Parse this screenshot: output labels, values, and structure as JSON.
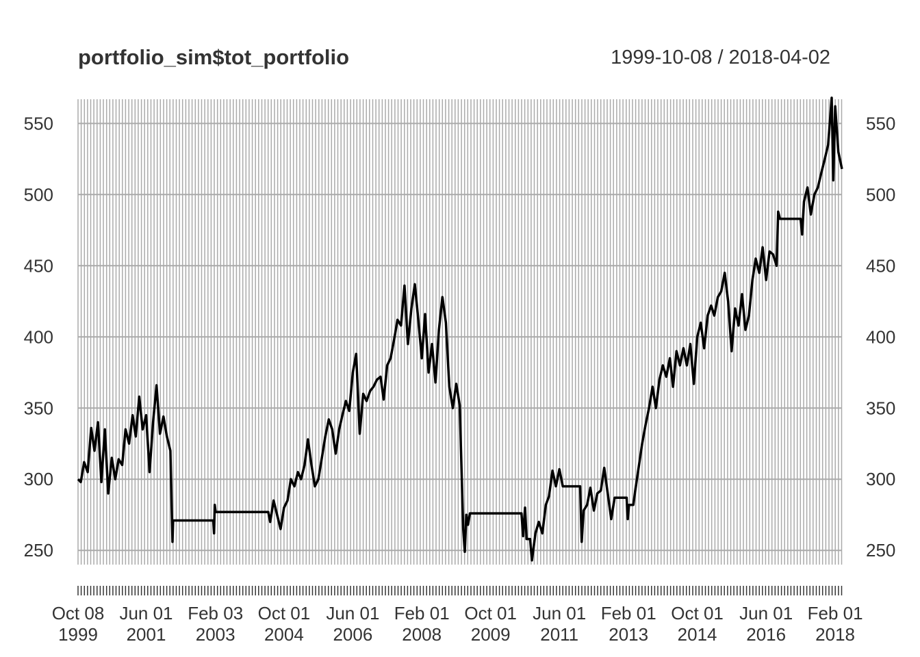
{
  "title": "portfolio_sim$tot_portfolio",
  "date_range": "1999-10-08 / 2018-04-02",
  "colors": {
    "line": "#000000",
    "grid": "#aaaaaa",
    "text": "#333333"
  },
  "chart_data": {
    "type": "line",
    "title": "portfolio_sim$tot_portfolio",
    "subtitle": "1999-10-08 / 2018-04-02",
    "xlabel": "",
    "ylabel": "",
    "ylim": [
      240,
      567
    ],
    "grid": true,
    "y_ticks": [
      250,
      300,
      350,
      400,
      450,
      500,
      550
    ],
    "x_ticks": [
      {
        "date": "1999-10-08",
        "line1": "Oct 08",
        "line2": "1999"
      },
      {
        "date": "2001-06-01",
        "line1": "Jun 01",
        "line2": "2001"
      },
      {
        "date": "2003-02-03",
        "line1": "Feb 03",
        "line2": "2003"
      },
      {
        "date": "2004-10-01",
        "line1": "Oct 01",
        "line2": "2004"
      },
      {
        "date": "2006-06-01",
        "line1": "Jun 01",
        "line2": "2006"
      },
      {
        "date": "2008-02-01",
        "line1": "Feb 01",
        "line2": "2008"
      },
      {
        "date": "2009-10-01",
        "line1": "Oct 01",
        "line2": "2009"
      },
      {
        "date": "2011-06-01",
        "line1": "Jun 01",
        "line2": "2011"
      },
      {
        "date": "2013-02-01",
        "line1": "Feb 01",
        "line2": "2013"
      },
      {
        "date": "2014-10-01",
        "line1": "Oct 01",
        "line2": "2014"
      },
      {
        "date": "2016-06-01",
        "line1": "Jun 01",
        "line2": "2016"
      },
      {
        "date": "2018-02-01",
        "line1": "Feb 01",
        "line2": "2018"
      }
    ],
    "series": [
      {
        "points": [
          [
            "1999-10-08",
            300
          ],
          [
            "1999-11-01",
            298
          ],
          [
            "1999-12-01",
            312
          ],
          [
            "2000-01-01",
            305
          ],
          [
            "2000-02-01",
            336
          ],
          [
            "2000-03-01",
            320
          ],
          [
            "2000-04-01",
            340
          ],
          [
            "2000-05-01",
            298
          ],
          [
            "2000-06-01",
            335
          ],
          [
            "2000-07-01",
            290
          ],
          [
            "2000-08-01",
            315
          ],
          [
            "2000-09-01",
            300
          ],
          [
            "2000-10-01",
            314
          ],
          [
            "2000-11-01",
            310
          ],
          [
            "2000-12-01",
            335
          ],
          [
            "2001-01-01",
            325
          ],
          [
            "2001-02-01",
            345
          ],
          [
            "2001-03-01",
            330
          ],
          [
            "2001-04-01",
            358
          ],
          [
            "2001-05-01",
            335
          ],
          [
            "2001-06-01",
            345
          ],
          [
            "2001-07-01",
            305
          ],
          [
            "2001-08-01",
            340
          ],
          [
            "2001-09-01",
            366
          ],
          [
            "2001-10-01",
            332
          ],
          [
            "2001-11-01",
            344
          ],
          [
            "2001-12-01",
            330
          ],
          [
            "2002-01-01",
            320
          ],
          [
            "2002-01-20",
            256
          ],
          [
            "2002-01-25",
            271
          ],
          [
            "2003-01-15",
            271
          ],
          [
            "2003-01-22",
            262
          ],
          [
            "2003-01-28",
            282
          ],
          [
            "2003-02-05",
            277
          ],
          [
            "2004-05-15",
            277
          ],
          [
            "2004-06-01",
            270
          ],
          [
            "2004-07-01",
            285
          ],
          [
            "2004-08-01",
            275
          ],
          [
            "2004-09-01",
            265
          ],
          [
            "2004-10-01",
            280
          ],
          [
            "2004-11-01",
            285
          ],
          [
            "2004-12-01",
            300
          ],
          [
            "2005-01-01",
            295
          ],
          [
            "2005-02-01",
            305
          ],
          [
            "2005-03-01",
            300
          ],
          [
            "2005-04-01",
            310
          ],
          [
            "2005-05-01",
            328
          ],
          [
            "2005-06-01",
            310
          ],
          [
            "2005-07-01",
            295
          ],
          [
            "2005-08-01",
            300
          ],
          [
            "2005-09-01",
            315
          ],
          [
            "2005-10-01",
            330
          ],
          [
            "2005-11-01",
            342
          ],
          [
            "2005-12-01",
            335
          ],
          [
            "2006-01-01",
            318
          ],
          [
            "2006-02-01",
            335
          ],
          [
            "2006-03-01",
            345
          ],
          [
            "2006-04-01",
            355
          ],
          [
            "2006-05-01",
            348
          ],
          [
            "2006-06-01",
            375
          ],
          [
            "2006-07-01",
            388
          ],
          [
            "2006-08-01",
            332
          ],
          [
            "2006-09-01",
            360
          ],
          [
            "2006-10-01",
            355
          ],
          [
            "2006-11-01",
            362
          ],
          [
            "2006-12-01",
            365
          ],
          [
            "2007-01-01",
            370
          ],
          [
            "2007-02-01",
            372
          ],
          [
            "2007-03-01",
            356
          ],
          [
            "2007-04-01",
            380
          ],
          [
            "2007-05-01",
            385
          ],
          [
            "2007-06-01",
            398
          ],
          [
            "2007-07-01",
            412
          ],
          [
            "2007-08-01",
            408
          ],
          [
            "2007-09-01",
            436
          ],
          [
            "2007-10-01",
            395
          ],
          [
            "2007-11-01",
            420
          ],
          [
            "2007-12-01",
            437
          ],
          [
            "2008-01-01",
            412
          ],
          [
            "2008-02-01",
            385
          ],
          [
            "2008-03-01",
            416
          ],
          [
            "2008-04-01",
            375
          ],
          [
            "2008-05-01",
            395
          ],
          [
            "2008-06-01",
            368
          ],
          [
            "2008-07-01",
            405
          ],
          [
            "2008-08-01",
            428
          ],
          [
            "2008-09-01",
            410
          ],
          [
            "2008-10-01",
            365
          ],
          [
            "2008-11-01",
            350
          ],
          [
            "2008-12-01",
            367
          ],
          [
            "2009-01-01",
            352
          ],
          [
            "2009-02-01",
            265
          ],
          [
            "2009-02-15",
            249
          ],
          [
            "2009-03-01",
            275
          ],
          [
            "2009-03-15",
            268
          ],
          [
            "2009-04-01",
            276
          ],
          [
            "2010-07-01",
            276
          ],
          [
            "2010-07-15",
            260
          ],
          [
            "2010-08-01",
            280
          ],
          [
            "2010-08-15",
            258
          ],
          [
            "2010-09-15",
            258
          ],
          [
            "2010-10-01",
            243
          ],
          [
            "2010-11-01",
            262
          ],
          [
            "2010-12-01",
            270
          ],
          [
            "2011-01-01",
            262
          ],
          [
            "2011-02-01",
            282
          ],
          [
            "2011-03-01",
            288
          ],
          [
            "2011-04-01",
            306
          ],
          [
            "2011-05-01",
            295
          ],
          [
            "2011-06-01",
            307
          ],
          [
            "2011-07-01",
            295
          ],
          [
            "2011-12-01",
            295
          ],
          [
            "2011-12-15",
            256
          ],
          [
            "2012-01-01",
            278
          ],
          [
            "2012-02-01",
            282
          ],
          [
            "2012-03-01",
            294
          ],
          [
            "2012-04-01",
            278
          ],
          [
            "2012-05-01",
            290
          ],
          [
            "2012-06-01",
            292
          ],
          [
            "2012-07-01",
            308
          ],
          [
            "2012-08-01",
            290
          ],
          [
            "2012-09-01",
            272
          ],
          [
            "2012-10-01",
            287
          ],
          [
            "2013-01-15",
            287
          ],
          [
            "2013-01-25",
            272
          ],
          [
            "2013-02-05",
            282
          ],
          [
            "2013-03-15",
            282
          ],
          [
            "2013-04-01",
            292
          ],
          [
            "2013-05-01",
            308
          ],
          [
            "2013-06-01",
            325
          ],
          [
            "2013-07-01",
            338
          ],
          [
            "2013-08-01",
            350
          ],
          [
            "2013-09-01",
            365
          ],
          [
            "2013-10-01",
            350
          ],
          [
            "2013-11-01",
            370
          ],
          [
            "2013-12-01",
            380
          ],
          [
            "2014-01-01",
            372
          ],
          [
            "2014-02-01",
            385
          ],
          [
            "2014-03-01",
            365
          ],
          [
            "2014-04-01",
            390
          ],
          [
            "2014-05-01",
            380
          ],
          [
            "2014-06-01",
            392
          ],
          [
            "2014-07-01",
            380
          ],
          [
            "2014-08-01",
            395
          ],
          [
            "2014-09-01",
            367
          ],
          [
            "2014-10-01",
            400
          ],
          [
            "2014-11-01",
            410
          ],
          [
            "2014-12-01",
            392
          ],
          [
            "2015-01-01",
            415
          ],
          [
            "2015-02-01",
            422
          ],
          [
            "2015-03-01",
            415
          ],
          [
            "2015-04-01",
            428
          ],
          [
            "2015-05-01",
            432
          ],
          [
            "2015-06-01",
            445
          ],
          [
            "2015-07-01",
            425
          ],
          [
            "2015-08-01",
            390
          ],
          [
            "2015-09-01",
            420
          ],
          [
            "2015-10-01",
            408
          ],
          [
            "2015-11-01",
            430
          ],
          [
            "2015-12-01",
            405
          ],
          [
            "2016-01-01",
            415
          ],
          [
            "2016-02-01",
            440
          ],
          [
            "2016-03-01",
            455
          ],
          [
            "2016-04-01",
            445
          ],
          [
            "2016-05-01",
            463
          ],
          [
            "2016-06-01",
            440
          ],
          [
            "2016-07-01",
            460
          ],
          [
            "2016-08-01",
            458
          ],
          [
            "2016-09-01",
            450
          ],
          [
            "2016-09-15",
            488
          ],
          [
            "2016-10-01",
            483
          ],
          [
            "2017-04-01",
            483
          ],
          [
            "2017-04-15",
            472
          ],
          [
            "2017-05-01",
            495
          ],
          [
            "2017-06-01",
            505
          ],
          [
            "2017-07-01",
            486
          ],
          [
            "2017-08-01",
            500
          ],
          [
            "2017-09-01",
            505
          ],
          [
            "2017-10-01",
            515
          ],
          [
            "2017-11-01",
            525
          ],
          [
            "2017-12-01",
            535
          ],
          [
            "2018-01-01",
            568
          ],
          [
            "2018-01-15",
            510
          ],
          [
            "2018-02-01",
            562
          ],
          [
            "2018-03-01",
            530
          ],
          [
            "2018-04-02",
            518
          ]
        ]
      }
    ]
  }
}
